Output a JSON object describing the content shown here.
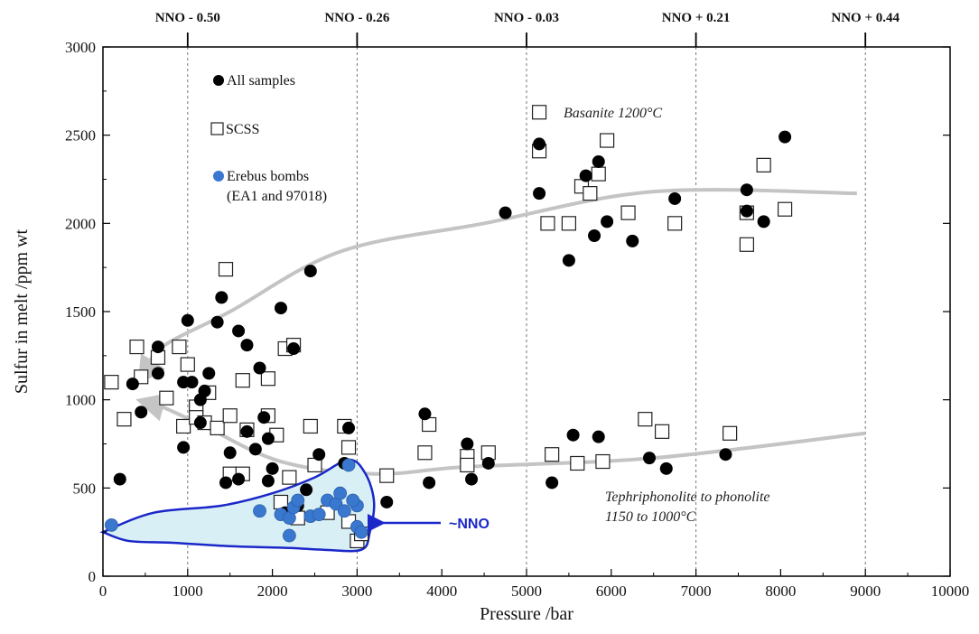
{
  "chart_data": {
    "type": "scatter",
    "xlabel": "Pressure /bar",
    "ylabel": "Sulfur in melt /ppm wt",
    "xlim": [
      0,
      10000
    ],
    "ylim": [
      0,
      3000
    ],
    "xticks": [
      0,
      1000,
      2000,
      3000,
      4000,
      5000,
      6000,
      7000,
      8000,
      9000,
      10000
    ],
    "yticks": [
      0,
      500,
      1000,
      1500,
      2000,
      2500,
      3000
    ],
    "top_axis": {
      "labels": [
        "NNO - 0.50",
        "NNO - 0.26",
        "NNO - 0.03",
        "NNO + 0.21",
        "NNO + 0.44"
      ],
      "positions": [
        1000,
        3000,
        5000,
        7000,
        9000
      ]
    },
    "vertical_reference_lines_x": [
      1000,
      3000,
      5000,
      7000,
      9000
    ],
    "legend": [
      {
        "marker": "filled-circle-black",
        "text": "All samples"
      },
      {
        "marker": "open-square",
        "text": "SCSS"
      },
      {
        "marker": "filled-circle-blue",
        "text": "Erebus bombs",
        "text2": "(EA1 and 97018)"
      }
    ],
    "annotations": {
      "basanite": "Basanite 1200°C",
      "tephri_line1": "Tephriphonolite to phonolite",
      "tephri_line2": "1150 to 1000°C",
      "nno": "~NNO"
    },
    "colors": {
      "all_samples": "#000000",
      "scss": "#ffffff",
      "erebus": "#3a78d0",
      "erebus_field": "#d8f0f5",
      "nno_outline": "#1a27c9",
      "trend_arrow": "#c4c4c4"
    },
    "series": [
      {
        "name": "All samples",
        "points": [
          [
            200,
            550
          ],
          [
            350,
            1090
          ],
          [
            450,
            930
          ],
          [
            650,
            1150
          ],
          [
            650,
            1300
          ],
          [
            950,
            1100
          ],
          [
            950,
            730
          ],
          [
            1000,
            1450
          ],
          [
            1050,
            1100
          ],
          [
            1150,
            1000
          ],
          [
            1150,
            870
          ],
          [
            1200,
            1050
          ],
          [
            1250,
            1150
          ],
          [
            1350,
            1440
          ],
          [
            1400,
            1580
          ],
          [
            1450,
            530
          ],
          [
            1500,
            700
          ],
          [
            1600,
            1390
          ],
          [
            1600,
            550
          ],
          [
            1700,
            1310
          ],
          [
            1700,
            820
          ],
          [
            1800,
            720
          ],
          [
            1850,
            1180
          ],
          [
            1900,
            900
          ],
          [
            1950,
            780
          ],
          [
            1950,
            540
          ],
          [
            2000,
            610
          ],
          [
            2100,
            1520
          ],
          [
            2150,
            360
          ],
          [
            2250,
            1290
          ],
          [
            2300,
            400
          ],
          [
            2400,
            490
          ],
          [
            2450,
            1730
          ],
          [
            2550,
            690
          ],
          [
            2850,
            640
          ],
          [
            2900,
            840
          ],
          [
            3350,
            420
          ],
          [
            3800,
            920
          ],
          [
            3850,
            530
          ],
          [
            4300,
            750
          ],
          [
            4350,
            550
          ],
          [
            4550,
            640
          ],
          [
            4750,
            2060
          ],
          [
            5150,
            2450
          ],
          [
            5150,
            2170
          ],
          [
            5300,
            530
          ],
          [
            5500,
            1790
          ],
          [
            5550,
            800
          ],
          [
            5700,
            2270
          ],
          [
            5800,
            1930
          ],
          [
            5850,
            2350
          ],
          [
            5850,
            790
          ],
          [
            5950,
            2010
          ],
          [
            6250,
            1900
          ],
          [
            6450,
            670
          ],
          [
            6650,
            610
          ],
          [
            6750,
            2140
          ],
          [
            7350,
            690
          ],
          [
            7600,
            2190
          ],
          [
            7600,
            2070
          ],
          [
            7800,
            2010
          ],
          [
            8050,
            2490
          ]
        ]
      },
      {
        "name": "SCSS",
        "points": [
          [
            100,
            1100
          ],
          [
            250,
            890
          ],
          [
            400,
            1300
          ],
          [
            450,
            1130
          ],
          [
            650,
            1240
          ],
          [
            750,
            1010
          ],
          [
            900,
            1300
          ],
          [
            950,
            850
          ],
          [
            1000,
            1200
          ],
          [
            1100,
            960
          ],
          [
            1100,
            900
          ],
          [
            1200,
            870
          ],
          [
            1250,
            1040
          ],
          [
            1350,
            840
          ],
          [
            1450,
            1740
          ],
          [
            1500,
            910
          ],
          [
            1500,
            580
          ],
          [
            1650,
            580
          ],
          [
            1650,
            1110
          ],
          [
            1700,
            830
          ],
          [
            1950,
            1120
          ],
          [
            1950,
            910
          ],
          [
            2050,
            800
          ],
          [
            2100,
            420
          ],
          [
            2150,
            1290
          ],
          [
            2200,
            560
          ],
          [
            2250,
            1310
          ],
          [
            2300,
            330
          ],
          [
            2450,
            850
          ],
          [
            2500,
            630
          ],
          [
            2650,
            360
          ],
          [
            2850,
            850
          ],
          [
            2900,
            730
          ],
          [
            2900,
            310
          ],
          [
            3000,
            200
          ],
          [
            3050,
            240
          ],
          [
            3350,
            570
          ],
          [
            3800,
            700
          ],
          [
            3850,
            860
          ],
          [
            4300,
            680
          ],
          [
            4300,
            630
          ],
          [
            4550,
            700
          ],
          [
            5150,
            2630
          ],
          [
            5150,
            2410
          ],
          [
            5250,
            2000
          ],
          [
            5300,
            690
          ],
          [
            5500,
            2000
          ],
          [
            5600,
            640
          ],
          [
            5650,
            2210
          ],
          [
            5750,
            2170
          ],
          [
            5850,
            2280
          ],
          [
            5900,
            650
          ],
          [
            5950,
            2470
          ],
          [
            6200,
            2060
          ],
          [
            6400,
            890
          ],
          [
            6600,
            820
          ],
          [
            6750,
            2000
          ],
          [
            7400,
            810
          ],
          [
            7600,
            2060
          ],
          [
            7600,
            1880
          ],
          [
            7800,
            2330
          ],
          [
            8050,
            2080
          ]
        ]
      },
      {
        "name": "Erebus bombs",
        "points": [
          [
            100,
            290
          ],
          [
            1850,
            370
          ],
          [
            2100,
            350
          ],
          [
            2200,
            330
          ],
          [
            2200,
            230
          ],
          [
            2250,
            390
          ],
          [
            2300,
            430
          ],
          [
            2450,
            340
          ],
          [
            2550,
            350
          ],
          [
            2650,
            430
          ],
          [
            2750,
            410
          ],
          [
            2800,
            470
          ],
          [
            2850,
            370
          ],
          [
            2900,
            630
          ],
          [
            3000,
            400
          ],
          [
            3000,
            280
          ],
          [
            3050,
            250
          ],
          [
            2950,
            430
          ]
        ]
      }
    ]
  }
}
